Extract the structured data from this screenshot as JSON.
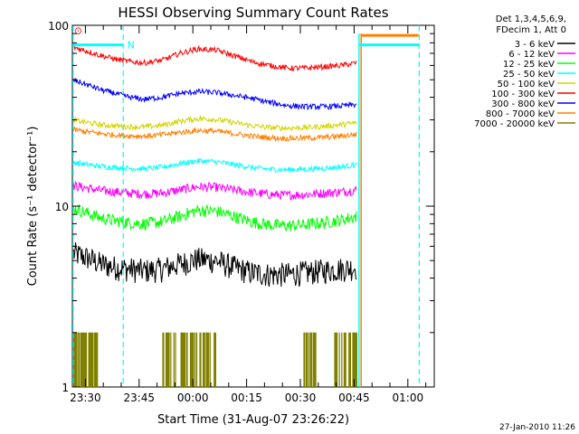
{
  "chart_data": {
    "type": "line",
    "title": "HESSI Observing Summary Count Rates",
    "xlabel": "Start Time (31-Aug-07 23:26:22)",
    "ylabel": "Count Rate (s⁻¹ detector⁻¹)",
    "yscale": "log",
    "ylim": [
      1,
      100
    ],
    "x_unit": "minutes after 23:26:22",
    "xlim": [
      0,
      101
    ],
    "x_ticks": [
      {
        "m": 3.63,
        "label": "23:30"
      },
      {
        "m": 18.63,
        "label": "23:45"
      },
      {
        "m": 33.63,
        "label": "00:00"
      },
      {
        "m": 48.63,
        "label": "00:15"
      },
      {
        "m": 63.63,
        "label": "00:30"
      },
      {
        "m": 78.63,
        "label": "00:45"
      },
      {
        "m": 93.63,
        "label": "01:00"
      }
    ],
    "y_ticks": [
      {
        "v": 1,
        "label": "1"
      },
      {
        "v": 10,
        "label": "10"
      },
      {
        "v": 100,
        "label": "100"
      }
    ],
    "legend": {
      "header": [
        "Det 1,3,4,5,6,9,",
        "FDecim 1, Att 0"
      ],
      "placement": "right"
    },
    "series": [
      {
        "name": "3 - 6 keV",
        "color": "#000000",
        "t": [
          0,
          4,
          8,
          12,
          16,
          20,
          25,
          30,
          35,
          40,
          45,
          50,
          55,
          60,
          65,
          70,
          75,
          79.5
        ],
        "v": [
          5.5,
          5.2,
          4.8,
          4.6,
          4.5,
          4.4,
          4.5,
          4.8,
          5.1,
          5.0,
          4.6,
          4.3,
          4.2,
          4.2,
          4.3,
          4.4,
          4.5,
          4.6
        ]
      },
      {
        "name": "6 - 12 keV",
        "color": "#ff00ff",
        "t": [
          0,
          4,
          8,
          12,
          16,
          20,
          25,
          30,
          35,
          40,
          45,
          50,
          55,
          60,
          65,
          70,
          75,
          79.5
        ],
        "v": [
          13.0,
          12.6,
          12.2,
          12.0,
          11.8,
          11.7,
          11.8,
          12.3,
          12.8,
          12.7,
          12.3,
          11.9,
          11.6,
          11.5,
          11.6,
          11.8,
          12.0,
          12.3
        ]
      },
      {
        "name": "12 - 25 keV",
        "color": "#00ff00",
        "t": [
          0,
          4,
          8,
          12,
          16,
          20,
          25,
          30,
          35,
          40,
          45,
          50,
          55,
          60,
          65,
          70,
          75,
          79.5
        ],
        "v": [
          9.8,
          9.2,
          8.6,
          8.3,
          8.1,
          8.0,
          8.2,
          8.8,
          9.5,
          9.4,
          8.8,
          8.2,
          7.9,
          7.8,
          7.9,
          8.1,
          8.4,
          8.8
        ]
      },
      {
        "name": "25 - 50 keV",
        "color": "#00ffff",
        "t": [
          0,
          4,
          8,
          12,
          16,
          20,
          25,
          30,
          35,
          40,
          45,
          50,
          55,
          60,
          65,
          70,
          75,
          79.5
        ],
        "v": [
          17.5,
          17.0,
          16.6,
          16.4,
          16.2,
          16.1,
          16.4,
          17.2,
          17.8,
          17.6,
          17.0,
          16.4,
          16.0,
          15.9,
          16.0,
          16.2,
          16.5,
          17.0
        ]
      },
      {
        "name": "50 - 100 keV",
        "color": "#d4d400",
        "t": [
          0,
          4,
          8,
          12,
          16,
          20,
          25,
          30,
          35,
          40,
          45,
          50,
          55,
          60,
          65,
          70,
          75,
          79.5
        ],
        "v": [
          30.0,
          29.0,
          28.2,
          27.8,
          27.5,
          27.4,
          28.0,
          29.5,
          30.5,
          30.2,
          29.0,
          27.9,
          27.2,
          27.0,
          27.2,
          27.6,
          28.2,
          29.0
        ]
      },
      {
        "name": "100 - 300 keV",
        "color": "#ff0000",
        "t": [
          0,
          4,
          8,
          12,
          16,
          20,
          25,
          30,
          35,
          40,
          45,
          50,
          55,
          60,
          65,
          70,
          75,
          79.5
        ],
        "v": [
          76,
          72,
          68,
          65,
          63,
          62,
          64,
          70,
          74,
          73,
          68,
          63,
          60,
          58,
          58,
          59,
          60,
          62
        ]
      },
      {
        "name": "300 - 800 keV",
        "color": "#0000ff",
        "t": [
          0,
          4,
          8,
          12,
          16,
          20,
          25,
          30,
          35,
          40,
          45,
          50,
          55,
          60,
          65,
          70,
          75,
          79.5
        ],
        "v": [
          50,
          47,
          44,
          42,
          40,
          39,
          40,
          42,
          43,
          42.5,
          41,
          39.5,
          37.5,
          36,
          35.5,
          35.5,
          35.8,
          36.5
        ]
      },
      {
        "name": "800 - 7000 keV",
        "color": "#ff8000",
        "t": [
          0,
          4,
          8,
          12,
          16,
          20,
          25,
          30,
          35,
          40,
          45,
          50,
          55,
          60,
          65,
          70,
          75,
          79.5
        ],
        "v": [
          26.5,
          25.8,
          25.2,
          24.8,
          24.5,
          24.4,
          24.8,
          25.6,
          26.2,
          26.0,
          25.2,
          24.4,
          23.9,
          23.7,
          23.8,
          24.0,
          24.4,
          25.0
        ]
      },
      {
        "name": "7000 - 20000 keV",
        "color": "#808000",
        "t": [
          0,
          4,
          8,
          12,
          16,
          20,
          25,
          30,
          35,
          40,
          45,
          50,
          55,
          60,
          65,
          70,
          75,
          79.5
        ],
        "v": [
          1,
          1,
          1,
          1,
          1,
          1,
          1,
          1,
          1,
          1,
          1,
          1,
          1,
          1,
          1,
          1,
          1,
          1
        ]
      }
    ],
    "flag_bars": [
      {
        "color": "#00ffff",
        "t0": 0.2,
        "t1": 14.2,
        "v": 78
      },
      {
        "color": "#00ffff",
        "t0": 80.2,
        "t1": 96.8,
        "v": 78
      },
      {
        "color": "#ff8000",
        "t0": 80.6,
        "t1": 96.6,
        "v": 88
      }
    ],
    "flag_labels": [
      {
        "text": "N",
        "t": 15.3,
        "v": 78,
        "color": "#00ffff"
      }
    ],
    "marker": {
      "symbol": "⊙",
      "t": 1.6,
      "v": 94,
      "color": "#ff0000"
    },
    "dashed_lines": [
      {
        "t": 0.2,
        "color": "#00ffff"
      },
      {
        "t": 14.2,
        "color": "#00ffff"
      },
      {
        "t": 96.8,
        "color": "#00ffff"
      }
    ],
    "solid_lines": [
      {
        "t": 80.0,
        "color": "#00ffff"
      },
      {
        "t": 80.6,
        "color": "#ff8000"
      }
    ],
    "footer": "27-Jan-2010 11:26"
  }
}
